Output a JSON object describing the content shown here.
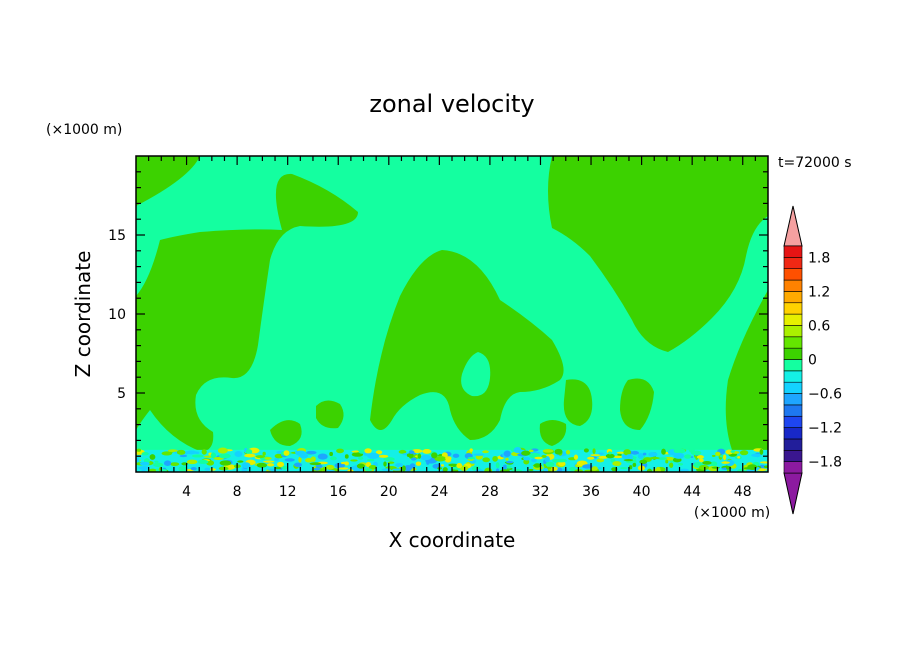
{
  "chart_data": {
    "type": "heatmap",
    "title": "zonal velocity",
    "time_label": "t=72000 s",
    "xlabel": "X coordinate",
    "ylabel": "Z coordinate",
    "x_units": "(×1000 m)",
    "y_units": "(×1000 m)",
    "xlim": [
      0,
      50
    ],
    "ylim": [
      0,
      20
    ],
    "x_ticks": [
      4,
      8,
      12,
      16,
      20,
      24,
      28,
      32,
      36,
      40,
      44,
      48
    ],
    "x_tick_labels": [
      "4",
      "8",
      "12",
      "16",
      "20",
      "24",
      "28",
      "32",
      "36",
      "40",
      "44",
      "48"
    ],
    "y_ticks": [
      5,
      10,
      15
    ],
    "y_tick_labels": [
      "5",
      "10",
      "15"
    ],
    "colorbar": {
      "levels": [
        -2.0,
        -1.8,
        -1.6,
        -1.4,
        -1.2,
        -1.0,
        -0.8,
        -0.6,
        -0.4,
        -0.2,
        0.0,
        0.2,
        0.4,
        0.6,
        0.8,
        1.0,
        1.2,
        1.4,
        1.6,
        1.8,
        2.0
      ],
      "tick_values": [
        1.8,
        1.2,
        0.6,
        0,
        -0.6,
        -1.2,
        -1.8
      ],
      "tick_labels": [
        "1.8",
        "1.2",
        "0.6",
        "0",
        "−0.6",
        "−1.2",
        "−1.8"
      ],
      "colors": [
        "#8c1aa0",
        "#3a168f",
        "#221e9a",
        "#1828c8",
        "#1e46f0",
        "#1e78f0",
        "#1ea5ff",
        "#14d2ff",
        "#14f0e6",
        "#14ffa0",
        "#3cd200",
        "#64e600",
        "#aaf000",
        "#e6f000",
        "#ffd200",
        "#ffaa00",
        "#ff8200",
        "#ff5000",
        "#f02814",
        "#e61414"
      ],
      "over_color": "#f5a0a0",
      "under_color": "#8c1aa0"
    }
  }
}
